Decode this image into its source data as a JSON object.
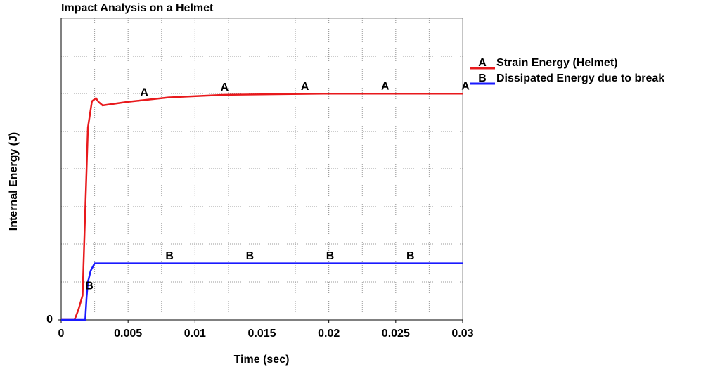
{
  "chart_data": {
    "type": "line",
    "title": "Impact Analysis on a Helmet",
    "x_label": "Time (sec)",
    "y_label": "Internal Energy (J)",
    "xlim": [
      0,
      0.03
    ],
    "xticks": [
      0,
      0.005,
      0.01,
      0.015,
      0.02,
      0.025,
      0.03
    ],
    "ylim": [
      0,
      8
    ],
    "yticks": [
      0
    ],
    "grid": true,
    "series": [
      {
        "name": "Strain Energy (Helmet)",
        "symbol": "A",
        "color": "#e8191c",
        "x": [
          0,
          0.001,
          0.0013,
          0.0016,
          0.0018,
          0.002,
          0.0023,
          0.0026,
          0.0028,
          0.0031,
          0.0049,
          0.008,
          0.0122,
          0.0196,
          0.03
        ],
        "values": [
          0,
          0,
          0.28,
          0.65,
          2.9,
          5.1,
          5.8,
          5.88,
          5.78,
          5.69,
          5.78,
          5.9,
          5.97,
          6.0,
          6.0
        ]
      },
      {
        "name": "Dissipated Energy due to break",
        "symbol": "B",
        "color": "#1a1aff",
        "x": [
          0,
          0.0018,
          0.0019,
          0.002,
          0.0022,
          0.0025,
          0.03
        ],
        "values": [
          0,
          0,
          0.6,
          1.0,
          1.3,
          1.5,
          1.5
        ]
      }
    ]
  }
}
